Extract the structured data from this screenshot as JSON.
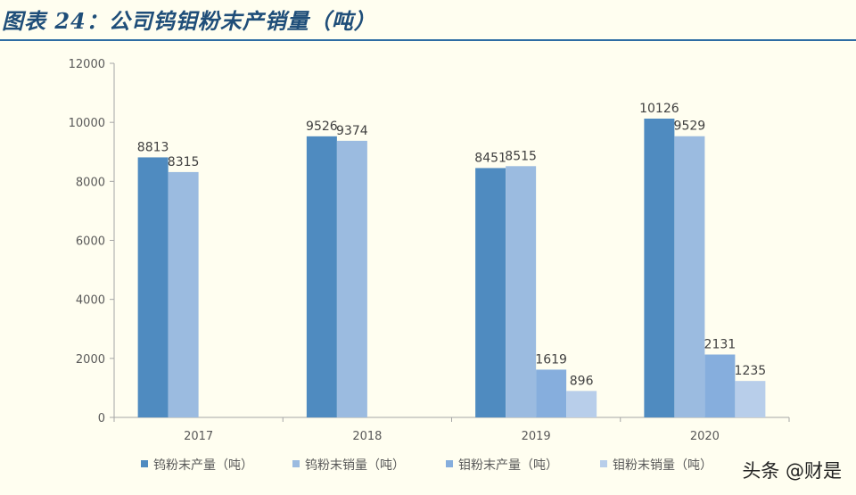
{
  "header": {
    "title": "图表 24：公司钨钼粉末产销量（吨）"
  },
  "watermark": "头条 @财是",
  "chart_data": {
    "type": "bar",
    "categories": [
      "2017",
      "2018",
      "2019",
      "2020"
    ],
    "ylim": [
      0,
      12000
    ],
    "yticks": [
      0,
      2000,
      4000,
      6000,
      8000,
      10000,
      12000
    ],
    "grid": false,
    "legend_position": "bottom",
    "series": [
      {
        "name": "钨粉末产量（吨）",
        "color": "#4F8BC0",
        "values": [
          8813,
          9526,
          8451,
          10126
        ]
      },
      {
        "name": "钨粉末销量（吨）",
        "color": "#9BBBE0",
        "values": [
          8315,
          9374,
          8515,
          9529
        ]
      },
      {
        "name": "钼粉末产量（吨）",
        "color": "#86AEDD",
        "values": [
          null,
          null,
          1619,
          2131
        ]
      },
      {
        "name": "钼粉末销量（吨）",
        "color": "#B8CEEA",
        "values": [
          null,
          null,
          896,
          1235
        ]
      }
    ],
    "data_labels": [
      [
        "8813",
        "9526",
        "8451",
        "10126"
      ],
      [
        "8315",
        "9374",
        "8515",
        "9529"
      ],
      [
        null,
        null,
        "1619",
        "2131"
      ],
      [
        null,
        null,
        "896",
        "1235"
      ]
    ]
  }
}
